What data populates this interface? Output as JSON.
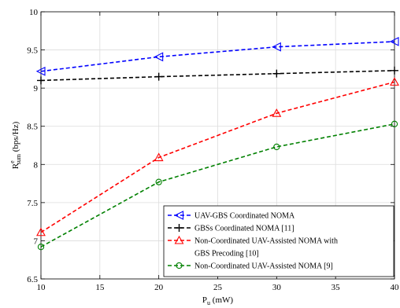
{
  "chart_data": {
    "type": "line",
    "title": "",
    "xlabel": {
      "base": "P",
      "subscript": "u",
      "unit": "(mW)"
    },
    "ylabel": {
      "base": "R",
      "superscript": "e",
      "subscript": "sum",
      "unit": "(bps/Hz)"
    },
    "xlim": [
      10,
      40
    ],
    "ylim": [
      6.5,
      10
    ],
    "xticks": [
      10,
      15,
      20,
      25,
      30,
      35,
      40
    ],
    "yticks": [
      6.5,
      7,
      7.5,
      8,
      8.5,
      9,
      9.5,
      10
    ],
    "xtick_labels": [
      "10",
      "15",
      "20",
      "25",
      "30",
      "35",
      "40"
    ],
    "ytick_labels": [
      "6.5",
      "7",
      "7.5",
      "8",
      "8.5",
      "9",
      "9.5",
      "10"
    ],
    "grid": true,
    "legend_position": "bottom-right",
    "series": [
      {
        "name_lines": [
          "UAV-GBS Coordinated NOMA"
        ],
        "color": "#0000ff",
        "marker": "triangle-left",
        "x": [
          10,
          20,
          30,
          40
        ],
        "y": [
          9.22,
          9.41,
          9.54,
          9.61
        ]
      },
      {
        "name_lines": [
          "GBSs Coordinated NOMA [11]"
        ],
        "color": "#000000",
        "marker": "plus",
        "x": [
          10,
          20,
          30,
          40
        ],
        "y": [
          9.1,
          9.15,
          9.19,
          9.23
        ]
      },
      {
        "name_lines": [
          "Non-Coordinated UAV-Assisted NOMA with",
          "GBS Precoding [10]"
        ],
        "color": "#ff0000",
        "marker": "triangle-up",
        "x": [
          10,
          20,
          30,
          40
        ],
        "y": [
          7.11,
          8.09,
          8.67,
          9.08
        ]
      },
      {
        "name_lines": [
          "Non-Coordinated UAV-Assisted NOMA [9]"
        ],
        "color": "#008000",
        "marker": "circle",
        "x": [
          10,
          20,
          30,
          40
        ],
        "y": [
          6.92,
          7.77,
          8.23,
          8.53
        ]
      }
    ]
  }
}
